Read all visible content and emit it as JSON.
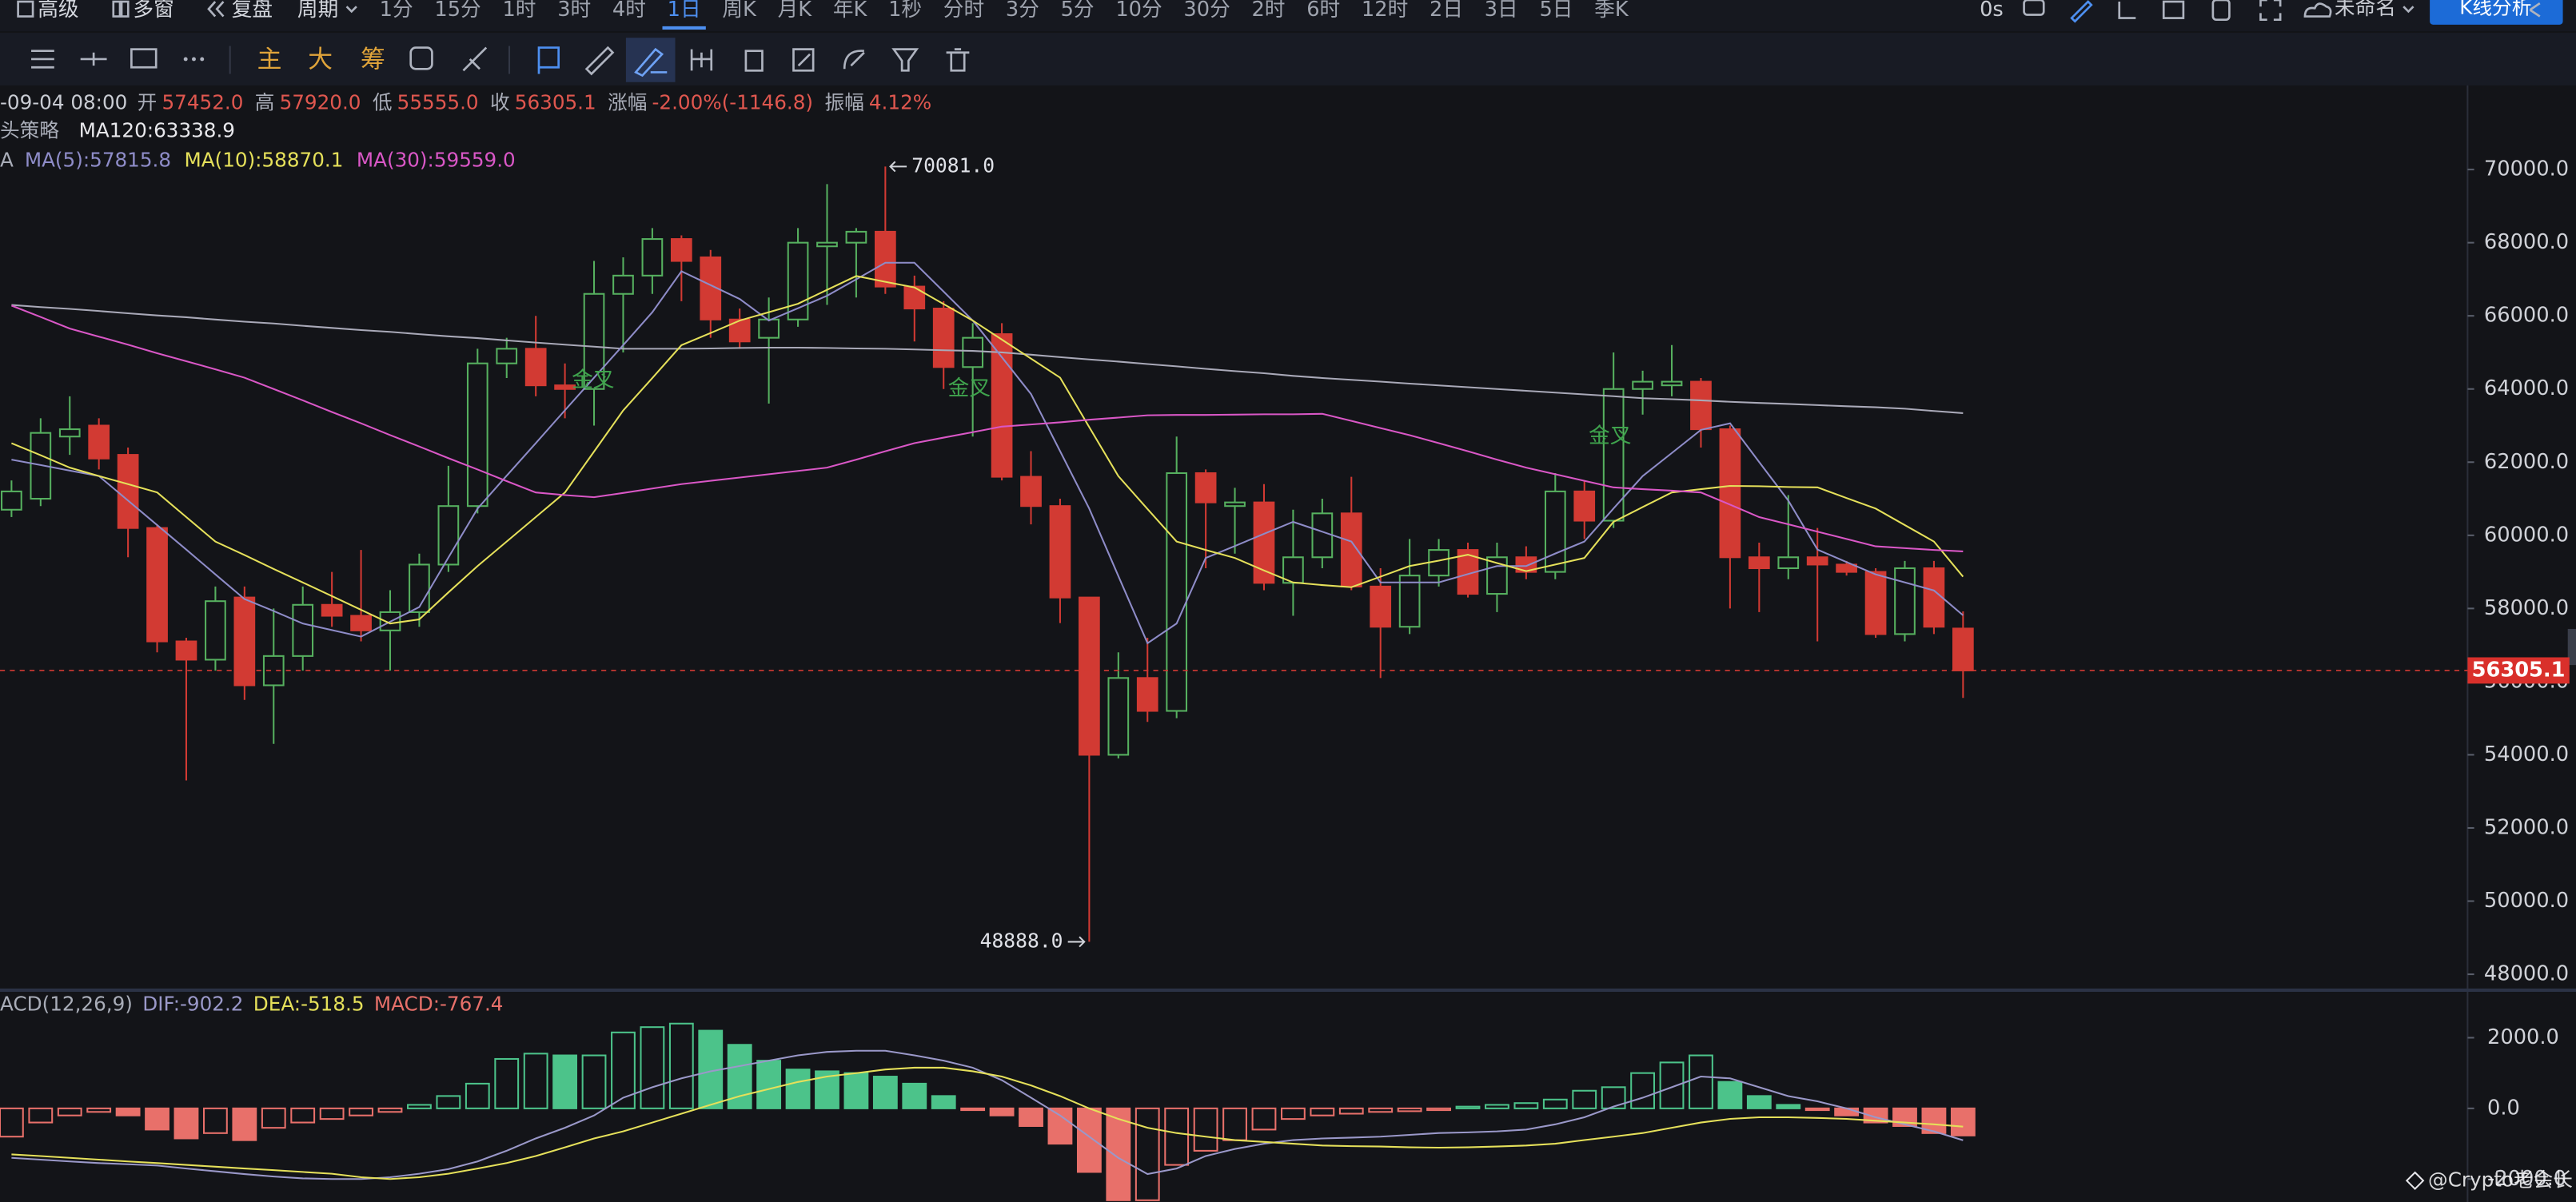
{
  "toolbar": {
    "menus": [
      "高级",
      "多窗",
      "复盘",
      "周期"
    ],
    "periods": [
      "1分",
      "15分",
      "1时",
      "3时",
      "4时",
      "1日",
      "周K",
      "月K",
      "年K",
      "1秒",
      "分时",
      "3分",
      "5分",
      "10分",
      "30分",
      "2时",
      "6时",
      "12时",
      "2日",
      "3日",
      "5日",
      "季K"
    ],
    "active_period": 5,
    "timer": "0s",
    "layout_name": "未命名",
    "analysis_button": "K线分析"
  },
  "drawing_toolbar": {
    "main_tools": [
      "主",
      "大",
      "筹"
    ]
  },
  "chart_data": [
    {
      "type": "candlestick",
      "info": {
        "datetime": "-09-04 08:00",
        "fields": [
          {
            "label": "开",
            "value": "57452.0"
          },
          {
            "label": "高",
            "value": "57920.0"
          },
          {
            "label": "低",
            "value": "55555.0"
          },
          {
            "label": "收",
            "value": "56305.1"
          },
          {
            "label": "涨幅",
            "value": "-2.00%(-1146.8)"
          },
          {
            "label": "振幅",
            "value": "4.12%"
          }
        ]
      },
      "strategy_label": "头策略",
      "legend_prefix": "A",
      "ylim": [
        47700,
        72300
      ],
      "yticks": [
        {
          "value": 70000,
          "label": "70000.0"
        },
        {
          "value": 68000,
          "label": "68000.0"
        },
        {
          "value": 66000,
          "label": "66000.0"
        },
        {
          "value": 64000,
          "label": "64000.0"
        },
        {
          "value": 62000,
          "label": "62000.0"
        },
        {
          "value": 60000,
          "label": "60000.0"
        },
        {
          "value": 58000,
          "label": "58000.0"
        },
        {
          "value": 56000,
          "label": "56000.0"
        },
        {
          "value": 54000,
          "label": "54000.0"
        },
        {
          "value": 52000,
          "label": "52000.0"
        },
        {
          "value": 50000,
          "label": "50000.0"
        },
        {
          "value": 48000,
          "label": "48000.0"
        }
      ],
      "grid": false,
      "up_color": "#56b05f",
      "down_color": "#d23a33",
      "open": [
        60700,
        61000,
        62700,
        63000,
        62200,
        60200,
        57100,
        56600,
        58300,
        55900,
        56700,
        58100,
        57800,
        57400,
        57900,
        59200,
        60800,
        64700,
        65100,
        64100,
        64000,
        66600,
        67100,
        68100,
        67600,
        65900,
        65400,
        65900,
        67900,
        68000,
        68300,
        66800,
        66200,
        64600,
        65500,
        61600,
        60800,
        58300,
        54000,
        56100,
        55200,
        61700,
        60800,
        60900,
        58700,
        59400,
        60600,
        58600,
        57500,
        58900,
        59600,
        58400,
        59400,
        59000,
        61200,
        60400,
        64000,
        64100,
        64200,
        62900,
        59400,
        59100,
        59400,
        59200,
        59000,
        57300,
        59100,
        57452
      ],
      "high": [
        61500,
        63200,
        63800,
        63200,
        62400,
        60300,
        57200,
        58600,
        58600,
        58000,
        58600,
        59000,
        59600,
        58500,
        59500,
        61900,
        65100,
        65400,
        66000,
        64700,
        67500,
        67600,
        68400,
        68200,
        67800,
        66200,
        66500,
        68400,
        69600,
        68400,
        70081,
        67100,
        66400,
        65800,
        65800,
        62300,
        61000,
        58300,
        56800,
        57200,
        62700,
        61800,
        61300,
        61400,
        60700,
        61000,
        61600,
        59100,
        59900,
        59900,
        59800,
        59800,
        59700,
        61700,
        61500,
        65000,
        64500,
        65200,
        64300,
        63000,
        59800,
        61100,
        60200,
        59300,
        59100,
        59300,
        59300,
        57920
      ],
      "low": [
        60500,
        60800,
        62200,
        61800,
        59400,
        56800,
        53300,
        56300,
        55500,
        54300,
        56300,
        57500,
        57100,
        56300,
        57500,
        59000,
        60600,
        64300,
        63800,
        63200,
        63000,
        65000,
        66600,
        66400,
        65400,
        65100,
        63600,
        65700,
        66300,
        66500,
        66600,
        65300,
        64000,
        62700,
        61500,
        60300,
        57600,
        48888,
        53900,
        54900,
        55000,
        59100,
        59500,
        58500,
        57800,
        59100,
        58500,
        56100,
        57300,
        58600,
        58300,
        57900,
        58800,
        58800,
        59900,
        60200,
        63300,
        63800,
        62400,
        58000,
        57900,
        58800,
        57100,
        58900,
        57200,
        57100,
        57300,
        55555
      ],
      "close": [
        61200,
        62800,
        62900,
        62100,
        60200,
        57100,
        56600,
        58200,
        55900,
        56700,
        58100,
        57800,
        57400,
        57900,
        59200,
        60800,
        64700,
        65100,
        64100,
        64000,
        66600,
        67100,
        68100,
        67500,
        65900,
        65300,
        65900,
        68000,
        68000,
        68300,
        66800,
        66200,
        64600,
        65400,
        61600,
        60800,
        58300,
        54000,
        56100,
        55200,
        61700,
        60900,
        60900,
        58700,
        59400,
        60600,
        58600,
        57500,
        58900,
        59600,
        58400,
        59400,
        59000,
        61200,
        60400,
        64000,
        64200,
        64200,
        62900,
        59400,
        59100,
        59400,
        59200,
        59000,
        57300,
        59100,
        57500,
        56305.1
      ],
      "high_label": "70081.0",
      "low_label": "48888.0",
      "last_price": {
        "value": 56305.1,
        "label": "56305.1"
      },
      "signals": [
        "金叉",
        "金叉",
        "金叉"
      ],
      "series": [
        {
          "name": "MA120:63338.9",
          "color": "#a9a9b8",
          "values": [
            66300,
            66240,
            66190,
            66130,
            66070,
            66010,
            65960,
            65900,
            65840,
            65790,
            65730,
            65670,
            65610,
            65560,
            65500,
            65440,
            65390,
            65330,
            65270,
            65210,
            65160,
            65100,
            65100,
            65100,
            65110,
            65120,
            65130,
            65130,
            65120,
            65110,
            65100,
            65080,
            65060,
            65040,
            65000,
            64940,
            64870,
            64810,
            64750,
            64680,
            64620,
            64550,
            64490,
            64430,
            64360,
            64300,
            64250,
            64200,
            64150,
            64100,
            64050,
            64000,
            63950,
            63900,
            63850,
            63800,
            63750,
            63720,
            63690,
            63650,
            63620,
            63590,
            63560,
            63530,
            63500,
            63460,
            63400,
            63338.9
          ]
        },
        {
          "name": "MA(5):57815.8",
          "color": "#8e8cc8",
          "values": [
            62070,
            61920,
            61770,
            61620,
            60950,
            60280,
            59610,
            58930,
            58260,
            57930,
            57590,
            57410,
            57230,
            57640,
            58040,
            59390,
            60730,
            61630,
            62520,
            63420,
            64310,
            65200,
            66100,
            67220,
            66840,
            66460,
            65870,
            66210,
            66550,
            67000,
            67450,
            67450,
            66660,
            65870,
            64870,
            63860,
            62300,
            60730,
            58890,
            57050,
            57590,
            59380,
            59710,
            60040,
            60370,
            60100,
            59830,
            58710,
            58710,
            58710,
            58940,
            59160,
            59160,
            59500,
            59830,
            60730,
            61620,
            62250,
            62880,
            63060,
            62000,
            60950,
            59610,
            59270,
            58930,
            58710,
            58490,
            57815.8
          ]
        },
        {
          "name": "MA(10):58870.1",
          "color": "#e5e05a",
          "values": [
            62520,
            62190,
            61850,
            61620,
            61400,
            61170,
            60500,
            59830,
            59460,
            59080,
            58710,
            58340,
            57960,
            57590,
            57700,
            58440,
            59160,
            59830,
            60500,
            61170,
            62290,
            63410,
            64300,
            65200,
            65530,
            65870,
            66100,
            66330,
            66710,
            67090,
            66930,
            66780,
            66320,
            65870,
            65350,
            64830,
            64310,
            62960,
            61620,
            60720,
            59830,
            59600,
            59380,
            59040,
            58710,
            58640,
            58580,
            58870,
            59160,
            59310,
            59470,
            59240,
            59020,
            59200,
            59380,
            60370,
            60770,
            61170,
            61260,
            61350,
            61340,
            61320,
            61310,
            61020,
            60730,
            60280,
            59830,
            58870.1
          ]
        },
        {
          "name": "MA(30):59559.0",
          "color": "#d957c6",
          "values": [
            66280,
            65970,
            65650,
            65430,
            65210,
            64980,
            64760,
            64540,
            64310,
            64000,
            63690,
            63370,
            63060,
            62740,
            62430,
            62110,
            61800,
            61480,
            61170,
            61100,
            61040,
            61160,
            61280,
            61400,
            61490,
            61580,
            61670,
            61760,
            61850,
            62070,
            62300,
            62520,
            62670,
            62820,
            62970,
            63030,
            63090,
            63160,
            63220,
            63280,
            63290,
            63290,
            63300,
            63310,
            63310,
            63320,
            63130,
            62930,
            62740,
            62520,
            62300,
            62070,
            61850,
            61670,
            61490,
            61310,
            61260,
            61220,
            61170,
            60840,
            60500,
            60300,
            60100,
            59900,
            59700,
            59650,
            59600,
            59559.0
          ]
        }
      ]
    },
    {
      "type": "macd",
      "legend": "ACD(12,26,9)",
      "ylim": [
        -2650,
        3160
      ],
      "yticks": [
        {
          "value": 2000,
          "label": "2000.0"
        },
        {
          "value": 0,
          "label": "0.0"
        },
        {
          "value": -2000,
          "label": "-2000.0"
        }
      ],
      "histogram": {
        "name": "MACD:-767.4",
        "up_color": "#4cc38a",
        "down_color": "#e8706a",
        "values": [
          -800,
          -400,
          -200,
          -100,
          -200,
          -600,
          -850,
          -700,
          -900,
          -550,
          -400,
          -300,
          -200,
          -100,
          100,
          350,
          700,
          1400,
          1550,
          1500,
          1500,
          2150,
          2300,
          2400,
          2200,
          1800,
          1350,
          1100,
          1050,
          1000,
          900,
          700,
          350,
          -50,
          -200,
          -500,
          -1000,
          -1800,
          -2600,
          -2600,
          -1600,
          -1200,
          -900,
          -600,
          -300,
          -200,
          -150,
          -100,
          -80,
          -50,
          50,
          100,
          150,
          250,
          500,
          600,
          1000,
          1300,
          1500,
          750,
          350,
          100,
          -50,
          -200,
          -400,
          -500,
          -700,
          -767.4
        ]
      },
      "series": [
        {
          "name": "DIF:-902.2",
          "color": "#9a98c9",
          "values": [
            -1400,
            -1450,
            -1500,
            -1550,
            -1580,
            -1620,
            -1700,
            -1780,
            -1860,
            -1930,
            -1980,
            -2000,
            -2000,
            -1950,
            -1850,
            -1720,
            -1500,
            -1200,
            -850,
            -550,
            -200,
            300,
            600,
            850,
            1050,
            1200,
            1350,
            1500,
            1600,
            1630,
            1630,
            1500,
            1350,
            1150,
            800,
            300,
            -200,
            -800,
            -1400,
            -1860,
            -1700,
            -1350,
            -1150,
            -1000,
            -900,
            -850,
            -830,
            -800,
            -750,
            -700,
            -680,
            -650,
            -600,
            -450,
            -250,
            50,
            300,
            600,
            900,
            850,
            600,
            350,
            200,
            0,
            -250,
            -450,
            -650,
            -902.2
          ]
        },
        {
          "name": "DEA:-518.5",
          "color": "#e5e05a",
          "values": [
            -1300,
            -1350,
            -1400,
            -1450,
            -1500,
            -1550,
            -1600,
            -1650,
            -1700,
            -1750,
            -1800,
            -1850,
            -1950,
            -2000,
            -1950,
            -1850,
            -1700,
            -1550,
            -1350,
            -1100,
            -850,
            -650,
            -400,
            -150,
            100,
            350,
            550,
            750,
            900,
            1000,
            1100,
            1150,
            1150,
            1050,
            900,
            650,
            350,
            0,
            -300,
            -550,
            -700,
            -800,
            -900,
            -950,
            -1000,
            -1050,
            -1070,
            -1080,
            -1100,
            -1110,
            -1100,
            -1080,
            -1050,
            -1000,
            -900,
            -800,
            -700,
            -550,
            -400,
            -300,
            -250,
            -250,
            -270,
            -300,
            -350,
            -400,
            -450,
            -518.5
          ]
        }
      ]
    }
  ],
  "watermark": "@Crypto老会长"
}
